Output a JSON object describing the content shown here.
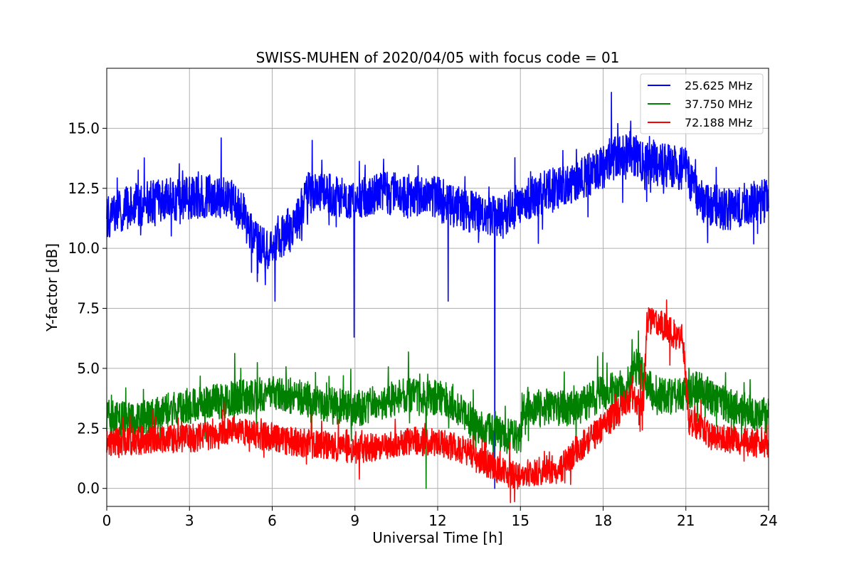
{
  "chart_data": {
    "type": "line",
    "title": "SWISS-MUHEN of 2020/04/05 with focus code = 01",
    "xlabel": "Universal Time [h]",
    "ylabel": "Y-factor [dB]",
    "xlim": [
      0,
      24
    ],
    "ylim": [
      -0.75,
      17.5
    ],
    "xticks": [
      0,
      3,
      6,
      9,
      12,
      15,
      18,
      21,
      24
    ],
    "xtick_labels": [
      "0",
      "3",
      "6",
      "9",
      "12",
      "15",
      "18",
      "21",
      "24"
    ],
    "yticks": [
      0,
      2.5,
      5,
      7.5,
      10,
      12.5,
      15
    ],
    "ytick_labels": [
      "0.0",
      "2.5",
      "5.0",
      "7.5",
      "10.0",
      "12.5",
      "15.0"
    ],
    "grid": true,
    "legend_position": "top-right",
    "series": [
      {
        "name": "25.625 MHz",
        "color": "#0000ff",
        "x": [
          0,
          0.5,
          1,
          1.5,
          2,
          3,
          4,
          4.5,
          5,
          5.3,
          5.8,
          6.2,
          6.6,
          7,
          7.3,
          8,
          9,
          10,
          11,
          12,
          12.4,
          13,
          14,
          14.3,
          15,
          16,
          17,
          18,
          18.5,
          19,
          19.5,
          20,
          21,
          21.5,
          22,
          22.5,
          23,
          24
        ],
        "y": [
          11.3,
          11.6,
          11.8,
          11.9,
          12.0,
          12.1,
          12.2,
          12.0,
          11.2,
          10.4,
          10.0,
          10.3,
          10.8,
          11.3,
          12.3,
          12.3,
          12.1,
          12.3,
          12.2,
          12.2,
          11.8,
          11.6,
          11.3,
          11.2,
          11.9,
          12.4,
          12.8,
          13.4,
          13.8,
          14.0,
          13.6,
          13.5,
          13.3,
          12.0,
          11.8,
          11.6,
          11.8,
          12.0
        ],
        "dips": [
          {
            "x": 5.25,
            "y": 9.0
          },
          {
            "x": 6.1,
            "y": 7.8
          },
          {
            "x": 8.97,
            "y": 6.3
          },
          {
            "x": 12.38,
            "y": 7.8
          },
          {
            "x": 14.07,
            "y": 0.0
          }
        ],
        "spikes": [
          {
            "x": 4.15,
            "y": 14.6
          },
          {
            "x": 7.45,
            "y": 14.5
          },
          {
            "x": 18.3,
            "y": 16.5
          },
          {
            "x": 19.0,
            "y": 15.3
          }
        ],
        "noise": 0.9
      },
      {
        "name": "37.750 MHz",
        "color": "#008000",
        "x": [
          0,
          0.5,
          1,
          2,
          3,
          4,
          5,
          6,
          7,
          8,
          9,
          10,
          11,
          11.5,
          12,
          12.6,
          13,
          13.5,
          14,
          14.5,
          15,
          15.1,
          16,
          17,
          18,
          18.8,
          19.2,
          19.8,
          20.5,
          21,
          21.5,
          22,
          23,
          24
        ],
        "y": [
          3.0,
          2.9,
          2.8,
          3.2,
          3.4,
          3.6,
          3.8,
          4.0,
          3.8,
          3.5,
          3.3,
          3.6,
          3.9,
          3.7,
          3.8,
          3.6,
          3.0,
          2.6,
          2.3,
          2.2,
          2.1,
          3.3,
          3.4,
          3.3,
          4.0,
          4.2,
          5.2,
          4.0,
          3.8,
          4.0,
          4.2,
          3.7,
          3.3,
          3.0
        ],
        "dips": [
          {
            "x": 11.58,
            "y": 0.0
          }
        ],
        "spikes": [
          {
            "x": 17.8,
            "y": 5.5
          },
          {
            "x": 19.05,
            "y": 6.2
          }
        ],
        "noise": 0.75
      },
      {
        "name": "72.188 MHz",
        "color": "#ff0000",
        "x": [
          0,
          1,
          2,
          3,
          4,
          4.6,
          5,
          6,
          7,
          8,
          9,
          10,
          11,
          12,
          13,
          13.5,
          14,
          14.5,
          15,
          15.5,
          16,
          16.5,
          17,
          17.5,
          18,
          18.5,
          19,
          19.45,
          19.6,
          20,
          20.5,
          20.9,
          21.1,
          21.5,
          22,
          23,
          24
        ],
        "y": [
          1.9,
          2.0,
          2.0,
          2.1,
          2.2,
          2.5,
          2.3,
          2.1,
          1.9,
          1.8,
          1.6,
          1.8,
          2.0,
          1.9,
          1.6,
          1.2,
          0.9,
          0.6,
          0.5,
          0.7,
          0.8,
          0.8,
          1.6,
          2.0,
          2.6,
          3.1,
          3.8,
          3.5,
          7.0,
          6.9,
          6.5,
          6.2,
          2.8,
          2.6,
          2.1,
          2.0,
          1.8
        ],
        "dips": [
          {
            "x": 20.3,
            "y": 5.2
          }
        ],
        "spikes": [
          {
            "x": 4.6,
            "y": 3.0
          },
          {
            "x": 19.35,
            "y": 5.2
          },
          {
            "x": 20.3,
            "y": 7.85
          },
          {
            "x": 21.55,
            "y": 3.7
          }
        ],
        "noise": 0.6
      }
    ]
  }
}
